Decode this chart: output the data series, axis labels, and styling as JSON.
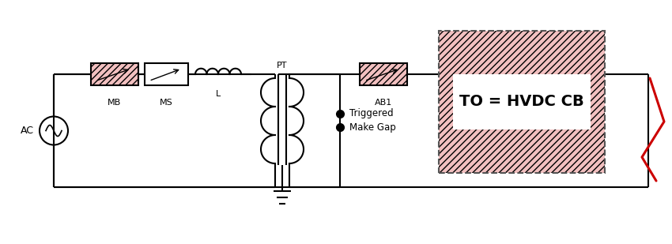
{
  "bg_color": "#ffffff",
  "line_color": "#000000",
  "red_color": "#cc0000",
  "hatch_fc": "#f2c0c0",
  "figsize": [
    8.5,
    3.09
  ],
  "dpi": 100,
  "labels": {
    "AC": "AC",
    "MB": "MB",
    "MS": "MS",
    "L": "L",
    "PT": "PT",
    "AB1": "AB1",
    "triggered": "Triggered",
    "makegap": "Make Gap",
    "hvdc": "TO = HVDC CB"
  }
}
